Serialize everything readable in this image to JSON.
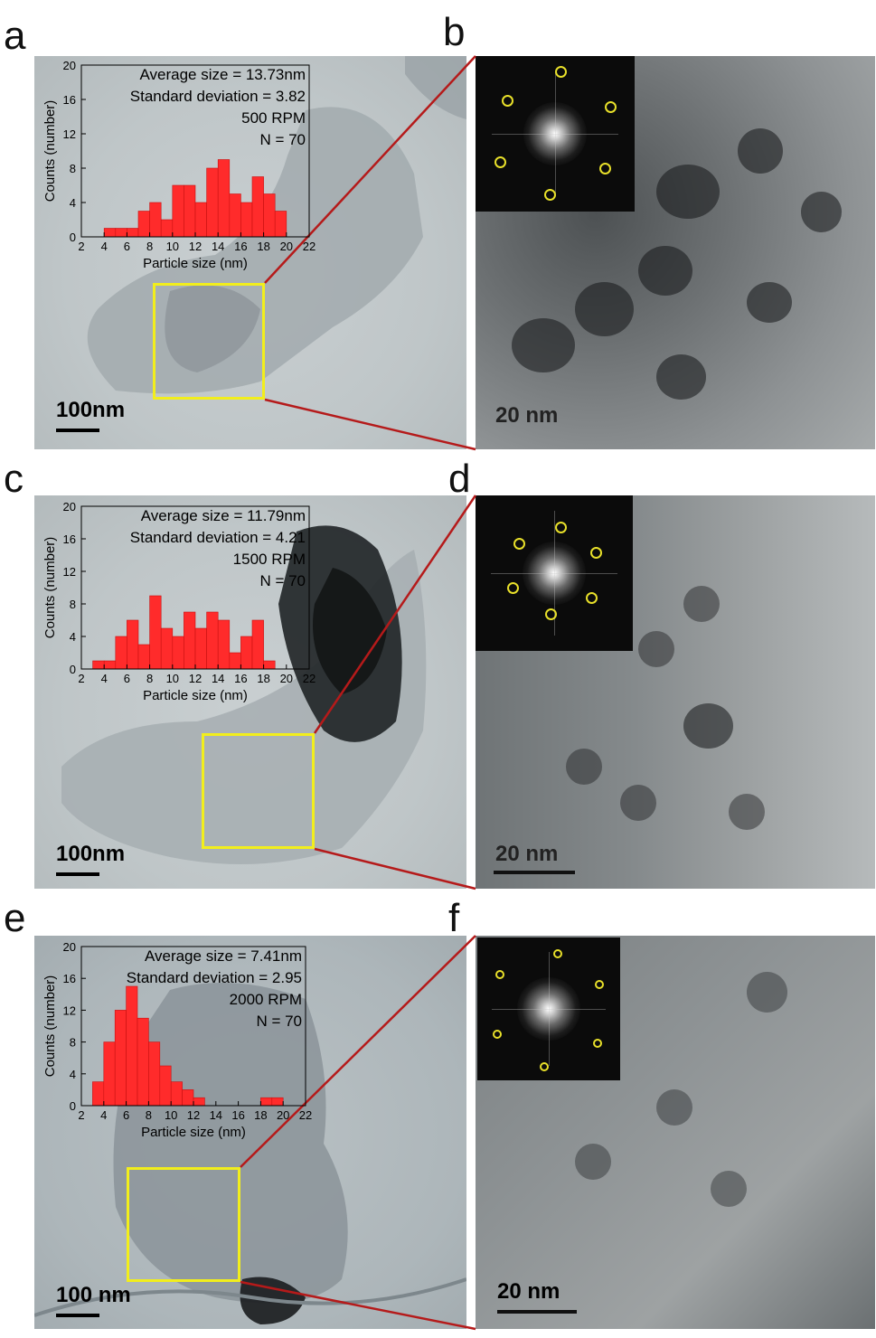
{
  "panels": [
    {
      "letter": "a",
      "scale_label": "100nm"
    },
    {
      "letter": "b",
      "scale_label": "20 nm"
    },
    {
      "letter": "c",
      "scale_label": "100nm"
    },
    {
      "letter": "d",
      "scale_label": "20 nm"
    },
    {
      "letter": "e",
      "scale_label": "100 nm"
    },
    {
      "letter": "f",
      "scale_label": "20 nm"
    }
  ],
  "colors": {
    "bars": "#ff2b2b",
    "bar_edge": "#c81010",
    "zoom_box": "#f2ee1c",
    "connector": "#b51a1a",
    "fft_spot": "#e8e02a"
  },
  "chart_data": [
    {
      "type": "bar",
      "panel": "a",
      "stats": [
        "Average size = 13.73nm",
        "Standard deviation = 3.82",
        "500 RPM",
        "N = 70"
      ],
      "xlabel": "Particle size (nm)",
      "ylabel": "Counts (number)",
      "xlim": [
        2,
        22
      ],
      "ylim": [
        0,
        20
      ],
      "xticks": [
        "2",
        "4",
        "6",
        "8",
        "10",
        "12",
        "14",
        "16",
        "18",
        "20",
        "22"
      ],
      "yticks": [
        "0",
        "4",
        "8",
        "12",
        "16",
        "20"
      ],
      "x": [
        4.5,
        5.5,
        6.5,
        7.5,
        8.5,
        9.5,
        10.5,
        11.5,
        12.5,
        13.5,
        14.5,
        15.5,
        16.5,
        17.5,
        18.5,
        19.5
      ],
      "values": [
        1,
        1,
        1,
        3,
        4,
        2,
        6,
        6,
        4,
        8,
        9,
        5,
        4,
        7,
        5,
        3
      ]
    },
    {
      "type": "bar",
      "panel": "c",
      "stats": [
        "Average size = 11.79nm",
        "Standard deviation = 4.21",
        "1500 RPM",
        "N = 70"
      ],
      "xlabel": "Particle size (nm)",
      "ylabel": "Counts (number)",
      "xlim": [
        2,
        22
      ],
      "ylim": [
        0,
        20
      ],
      "xticks": [
        "2",
        "4",
        "6",
        "8",
        "10",
        "12",
        "14",
        "16",
        "18",
        "20",
        "22"
      ],
      "yticks": [
        "0",
        "4",
        "8",
        "12",
        "16",
        "20"
      ],
      "x": [
        3.5,
        4.5,
        5.5,
        6.5,
        7.5,
        8.5,
        9.5,
        10.5,
        11.5,
        12.5,
        13.5,
        14.5,
        15.5,
        16.5,
        17.5,
        18.5
      ],
      "values": [
        1,
        1,
        4,
        6,
        3,
        9,
        5,
        4,
        7,
        5,
        7,
        6,
        2,
        4,
        6,
        1
      ]
    },
    {
      "type": "bar",
      "panel": "e",
      "stats": [
        "Average size = 7.41nm",
        "Standard deviation = 2.95",
        "2000 RPM",
        "N = 70"
      ],
      "xlabel": "Particle size (nm)",
      "ylabel": "Counts (number)",
      "xlim": [
        2,
        22
      ],
      "ylim": [
        0,
        20
      ],
      "xticks": [
        "2",
        "4",
        "6",
        "8",
        "10",
        "12",
        "14",
        "16",
        "18",
        "20",
        "22"
      ],
      "yticks": [
        "0",
        "4",
        "8",
        "12",
        "16",
        "20"
      ],
      "x": [
        3.5,
        4.5,
        5.5,
        6.5,
        7.5,
        8.5,
        9.5,
        10.5,
        11.5,
        12.5,
        18.5,
        19.5
      ],
      "values": [
        3,
        8,
        12,
        15,
        11,
        8,
        5,
        3,
        2,
        1,
        1,
        1
      ]
    }
  ]
}
